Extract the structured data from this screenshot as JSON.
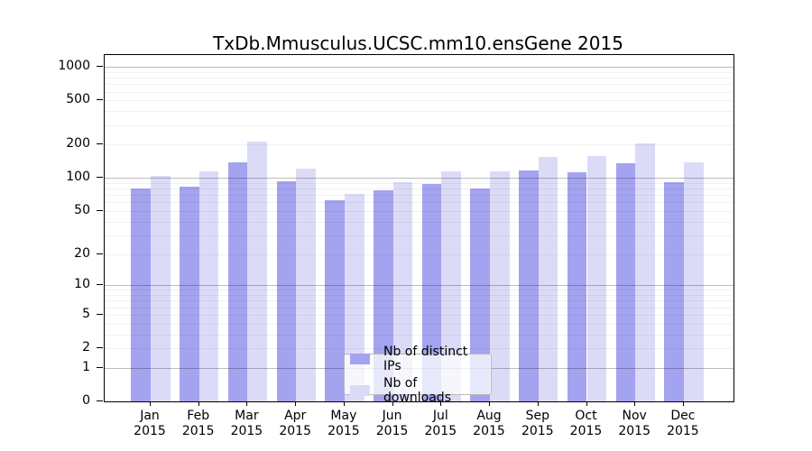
{
  "chart_data": {
    "type": "bar",
    "title": "TxDb.Mmusculus.UCSC.mm10.ensGene 2015",
    "year": "2015",
    "categories": [
      "Jan",
      "Feb",
      "Mar",
      "Apr",
      "May",
      "Jun",
      "Jul",
      "Aug",
      "Sep",
      "Oct",
      "Nov",
      "Dec"
    ],
    "series": [
      {
        "name": "Nb of distinct IPs",
        "color": "#a3a3ef",
        "values": [
          81,
          84,
          140,
          93,
          63,
          78,
          88,
          80,
          118,
          113,
          136,
          91
        ]
      },
      {
        "name": "Nb of downloads",
        "color": "#dbdbf8",
        "values": [
          105,
          114,
          215,
          122,
          72,
          92,
          116,
          115,
          156,
          157,
          205,
          140
        ]
      }
    ],
    "xlabel": "",
    "ylabel": "",
    "yscale": "log10(x+1)",
    "ylim": [
      0,
      1280
    ],
    "yticks": [
      1000,
      500,
      200,
      100,
      50,
      20,
      10,
      5,
      2,
      1,
      0
    ],
    "grid": {
      "on": true,
      "major": [
        1,
        10,
        100,
        1000
      ],
      "minor": [
        2,
        3,
        4,
        5,
        6,
        7,
        8,
        9,
        20,
        30,
        40,
        50,
        60,
        70,
        80,
        90,
        200,
        300,
        400,
        500,
        600,
        700,
        800,
        900
      ]
    },
    "legend": {
      "position": "lower center"
    }
  }
}
